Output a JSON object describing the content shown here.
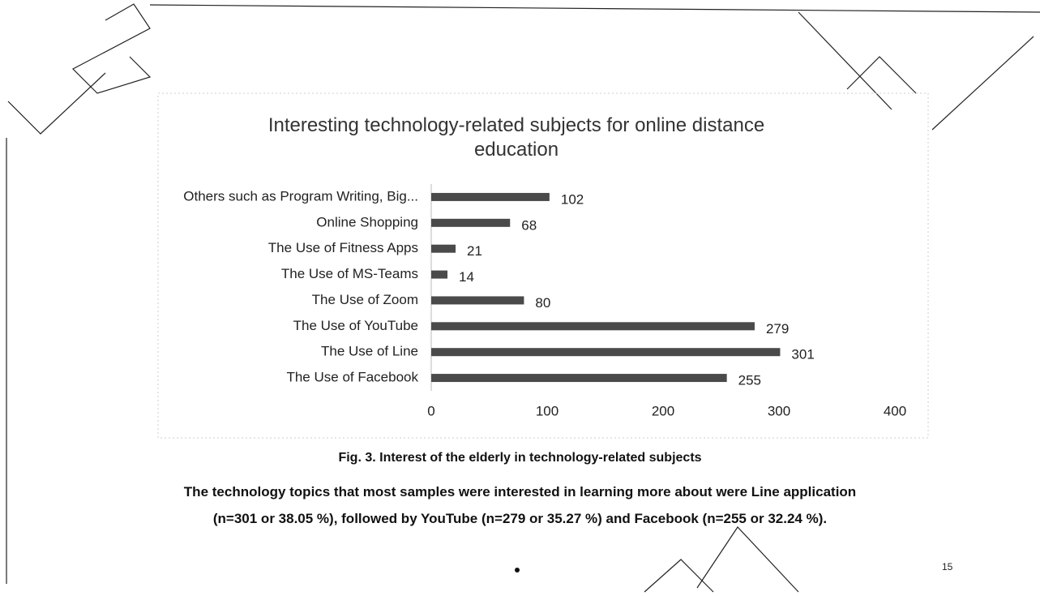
{
  "chart_data": {
    "type": "bar",
    "orientation": "horizontal",
    "title": "Interesting technology-related subjects for online distance education",
    "categories": [
      "Others such as Program Writing, Big...",
      "Online Shopping",
      "The Use of Fitness Apps",
      "The Use of MS-Teams",
      "The Use of Zoom",
      "The Use of YouTube",
      "The Use of Line",
      "The Use of Facebook"
    ],
    "values": [
      102,
      68,
      21,
      14,
      80,
      279,
      301,
      255
    ],
    "color": "#4a4a4a",
    "xlim": [
      0,
      400
    ],
    "xticks": [
      0,
      100,
      200,
      300,
      400
    ],
    "grid": false
  },
  "caption": "Fig. 3. Interest of the elderly in technology-related subjects",
  "paragraph": [
    "The technology topics that most samples were interested in learning more about were Line application",
    "(n=301 or 38.05 %), followed by YouTube (n=279 or 35.27 %) and Facebook (n=255 or 32.24 %)."
  ],
  "page_number": "15"
}
